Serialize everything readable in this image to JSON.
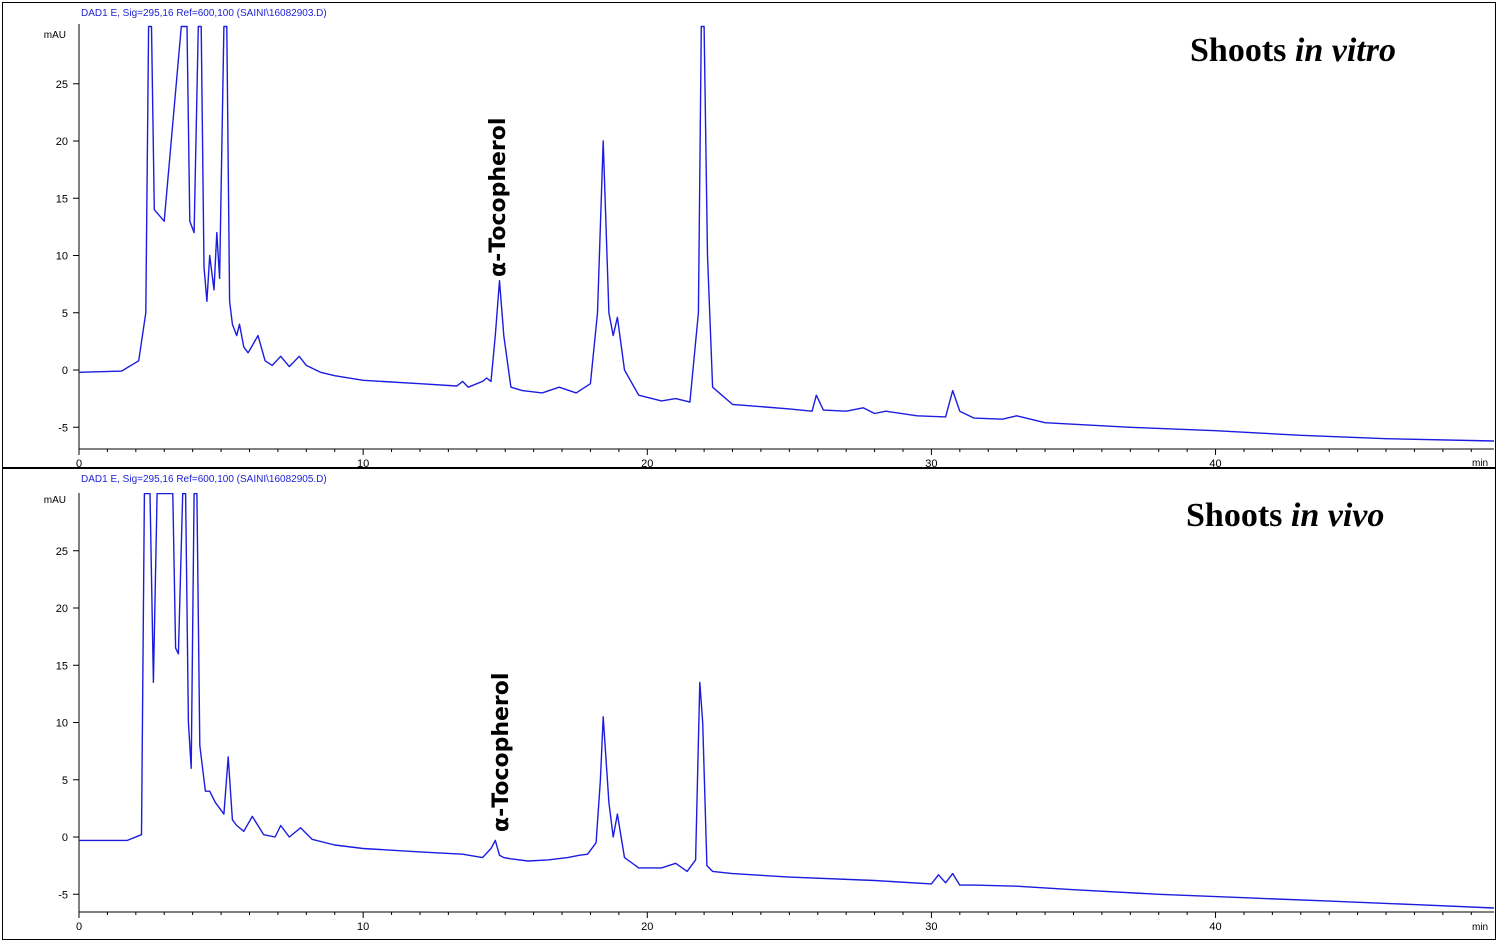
{
  "colors": {
    "trace": "#1c1ce0",
    "header_text": "#1f22d8",
    "axis": "#000000"
  },
  "chart_data": [
    {
      "type": "line",
      "header": "DAD1 E, Sig=295,16 Ref=600,100 (SAINI\\16082903.D)",
      "title": "Shoots ",
      "title_italic": "in vitro",
      "y_unit": "mAU",
      "x_unit": "min",
      "xlim": [
        0,
        49.8
      ],
      "ylim": [
        -7,
        30
      ],
      "x_ticks": [
        0,
        10,
        20,
        30,
        40
      ],
      "y_ticks": [
        -5,
        0,
        5,
        10,
        15,
        20,
        25
      ],
      "annotation": {
        "text": "α-Tocopherol",
        "x": 14.8
      },
      "series": [
        {
          "x": [
            0,
            1.5,
            2.1,
            2.35,
            2.45,
            2.55,
            2.65,
            3.0,
            3.6,
            3.8,
            3.9,
            4.05,
            4.2,
            4.3,
            4.4,
            4.5,
            4.6,
            4.75,
            4.85,
            4.95,
            5.1,
            5.2,
            5.3,
            5.4,
            5.55,
            5.65,
            5.8,
            5.95,
            6.3,
            6.55,
            6.8,
            7.1,
            7.4,
            7.75,
            8.0,
            8.5,
            9.0,
            10.0,
            12.0,
            13.3,
            13.5,
            13.7,
            14.2,
            14.35,
            14.5,
            14.65,
            14.8,
            14.95,
            15.2,
            15.6,
            16.3,
            16.9,
            17.5,
            18.0,
            18.25,
            18.45,
            18.65,
            18.8,
            18.95,
            19.2,
            19.7,
            20.5,
            21.0,
            21.5,
            21.8,
            21.9,
            22.0,
            22.12,
            22.3,
            23.0,
            25.0,
            25.8,
            25.95,
            26.2,
            27.0,
            27.6,
            28.0,
            28.4,
            29.5,
            30.5,
            30.75,
            31.0,
            31.5,
            32.5,
            33.0,
            34.0,
            37.0,
            40.0,
            43.0,
            46.0,
            49.8
          ],
          "y": [
            -0.2,
            -0.1,
            0.8,
            5,
            30,
            30,
            14,
            13,
            30,
            30,
            13,
            12,
            30,
            30,
            9,
            6,
            10,
            7,
            12,
            8,
            30,
            30,
            6,
            4,
            3,
            4,
            2,
            1.5,
            3,
            0.8,
            0.4,
            1.2,
            0.3,
            1.2,
            0.4,
            -0.2,
            -0.5,
            -0.9,
            -1.2,
            -1.4,
            -1.0,
            -1.5,
            -1.0,
            -0.7,
            -1.0,
            3,
            7.8,
            3,
            -1.5,
            -1.8,
            -2.0,
            -1.5,
            -2.0,
            -1.2,
            5,
            20,
            5,
            3,
            4.6,
            0,
            -2.2,
            -2.7,
            -2.5,
            -2.8,
            5,
            30,
            30,
            10,
            -1.5,
            -3.0,
            -3.4,
            -3.6,
            -2.2,
            -3.5,
            -3.6,
            -3.3,
            -3.8,
            -3.6,
            -4.0,
            -4.1,
            -1.8,
            -3.6,
            -4.2,
            -4.3,
            -4.0,
            -4.6,
            -5.0,
            -5.3,
            -5.7,
            -6.0,
            -6.2
          ]
        }
      ]
    },
    {
      "type": "line",
      "header": "DAD1 E, Sig=295,16 Ref=600,100 (SAINI\\16082905.D)",
      "title": "Shoots ",
      "title_italic": "in vivo",
      "y_unit": "mAU",
      "x_unit": "min",
      "xlim": [
        0,
        49.8
      ],
      "ylim": [
        -6.5,
        30
      ],
      "x_ticks": [
        0,
        10,
        20,
        30,
        40
      ],
      "y_ticks": [
        -5,
        0,
        5,
        10,
        15,
        20,
        25
      ],
      "annotation": {
        "text": "α-Tocopherol",
        "x": 14.8
      },
      "series": [
        {
          "x": [
            0,
            1.7,
            2.2,
            2.3,
            2.4,
            2.5,
            2.62,
            2.75,
            2.9,
            3.3,
            3.4,
            3.5,
            3.65,
            3.75,
            3.85,
            3.95,
            4.05,
            4.15,
            4.25,
            4.35,
            4.45,
            4.6,
            4.8,
            5.1,
            5.25,
            5.4,
            5.55,
            5.8,
            6.1,
            6.5,
            6.9,
            7.1,
            7.4,
            7.8,
            8.2,
            9.0,
            10.0,
            12.0,
            13.5,
            14.2,
            14.5,
            14.65,
            14.8,
            14.95,
            15.2,
            15.8,
            16.5,
            17.2,
            17.6,
            17.9,
            18.2,
            18.35,
            18.45,
            18.65,
            18.8,
            18.95,
            19.2,
            19.7,
            20.5,
            21.0,
            21.4,
            21.7,
            21.85,
            21.95,
            22.1,
            22.3,
            23.0,
            25.0,
            28.0,
            30.0,
            30.25,
            30.5,
            30.75,
            31.0,
            31.5,
            33.0,
            35.0,
            38.0,
            41.0,
            44.0,
            47.0,
            49.8
          ],
          "y": [
            -0.3,
            -0.3,
            0.2,
            30,
            30,
            30,
            13.5,
            30,
            30,
            30,
            16.5,
            16,
            30,
            30,
            10,
            6,
            30,
            30,
            8,
            6,
            4,
            4,
            3,
            2,
            7,
            1.5,
            1,
            0.5,
            1.8,
            0.2,
            0,
            1,
            0,
            0.8,
            -0.2,
            -0.7,
            -1.0,
            -1.3,
            -1.5,
            -1.8,
            -1.0,
            -0.3,
            -1.6,
            -1.8,
            -1.9,
            -2.1,
            -2.0,
            -1.8,
            -1.6,
            -1.5,
            -0.5,
            5,
            10.5,
            3,
            0,
            2,
            -1.8,
            -2.7,
            -2.7,
            -2.3,
            -3.0,
            -2.0,
            13.5,
            10,
            -2.5,
            -3.0,
            -3.2,
            -3.5,
            -3.8,
            -4.1,
            -3.3,
            -4.0,
            -3.2,
            -4.2,
            -4.2,
            -4.3,
            -4.6,
            -5.0,
            -5.3,
            -5.6,
            -5.9,
            -6.2
          ]
        }
      ]
    }
  ]
}
